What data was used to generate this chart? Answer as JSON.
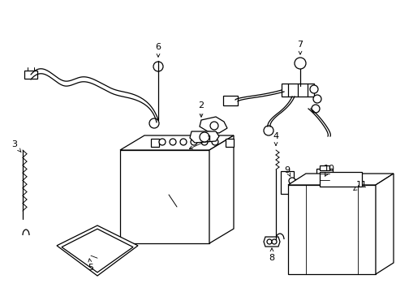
{
  "background_color": "#ffffff",
  "line_color": "#000000",
  "fig_width": 4.89,
  "fig_height": 3.6,
  "dpi": 100,
  "label_fontsize": 8,
  "lw": 0.9
}
